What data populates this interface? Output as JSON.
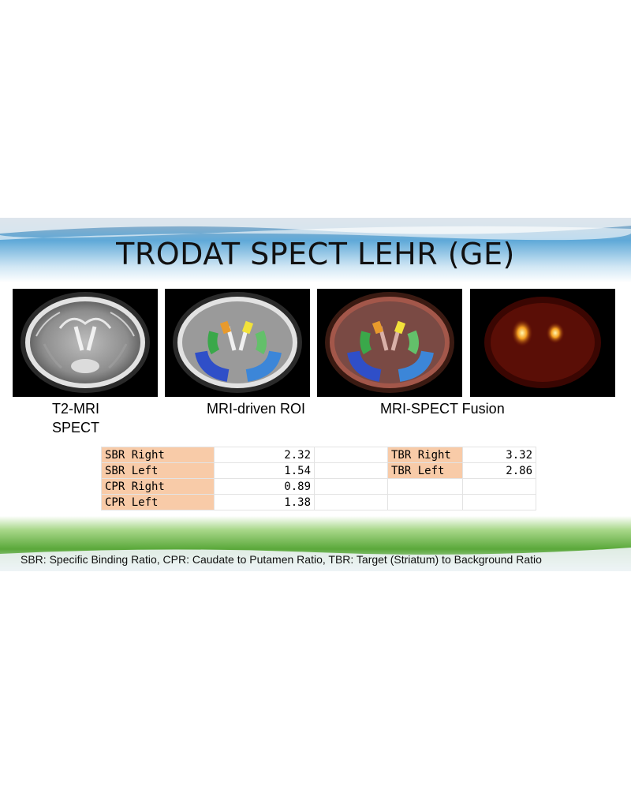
{
  "title": "TRODAT SPECT LEHR (GE)",
  "captions": {
    "c1_line1": "T2-MRI",
    "c1_line2": "SPECT",
    "c2": "MRI-driven ROI",
    "c3": "MRI-SPECT Fusion"
  },
  "table": {
    "rows": [
      {
        "label": "SBR Right",
        "value": "2.32",
        "label2": "TBR Right",
        "value2": "3.32"
      },
      {
        "label": "SBR Left",
        "value": "1.54",
        "label2": "TBR Left",
        "value2": "2.86"
      },
      {
        "label": "CPR Right",
        "value": "0.89",
        "label2": "",
        "value2": ""
      },
      {
        "label": "CPR Left",
        "value": "1.38",
        "label2": "",
        "value2": ""
      }
    ]
  },
  "footnote": "SBR: Specific Binding Ratio, CPR: Caudate to Putamen Ratio, TBR: Target (Striatum) to Background Ratio",
  "colors": {
    "label_fill": "#f8cba8",
    "sky": "#4a9fd6",
    "grass": "#5aa83a",
    "roi_caudate": "#e89a2c",
    "roi_putamen_right": "#f2e23a",
    "roi_green": "#3aa84a",
    "roi_blue": "#2f5fd0"
  }
}
